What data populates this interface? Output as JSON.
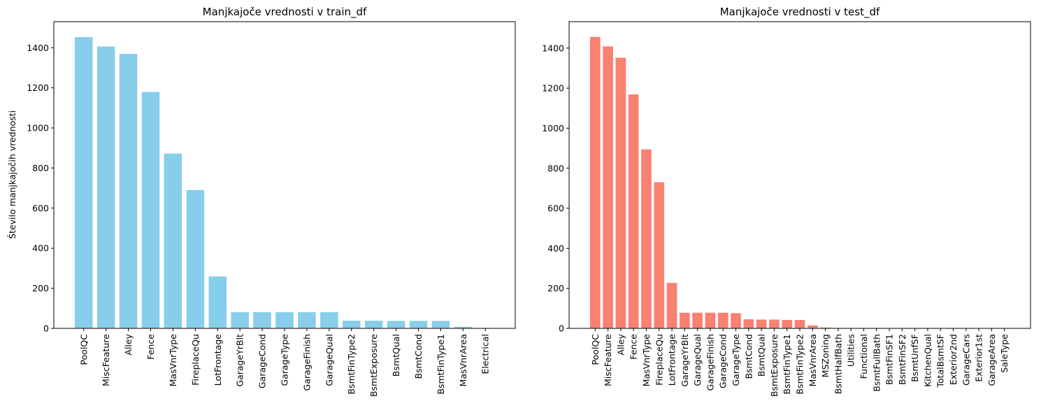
{
  "chart_data": [
    {
      "type": "bar",
      "title": "Manjkajoče vrednosti v train_df",
      "xlabel": "",
      "ylabel": "Število manjkajočih vrednosti",
      "ylim": [
        0,
        1530
      ],
      "yticks": [
        0,
        200,
        400,
        600,
        800,
        1000,
        1200,
        1400
      ],
      "bar_color": "#87ceeb",
      "grid": false,
      "categories": [
        "PoolQC",
        "MiscFeature",
        "Alley",
        "Fence",
        "MasVnrType",
        "FireplaceQu",
        "LotFrontage",
        "GarageYrBlt",
        "GarageCond",
        "GarageType",
        "GarageFinish",
        "GarageQual",
        "BsmtFinType2",
        "BsmtExposure",
        "BsmtQual",
        "BsmtCond",
        "BsmtFinType1",
        "MasVnrArea",
        "Electrical"
      ],
      "values": [
        1453,
        1406,
        1369,
        1179,
        872,
        690,
        259,
        81,
        81,
        81,
        81,
        81,
        38,
        38,
        37,
        37,
        37,
        8,
        1
      ]
    },
    {
      "type": "bar",
      "title": "Manjkajoče vrednosti v test_df",
      "xlabel": "",
      "ylabel": "",
      "ylim": [
        0,
        1532
      ],
      "yticks": [
        0,
        200,
        400,
        600,
        800,
        1000,
        1200,
        1400
      ],
      "bar_color": "#fa8072",
      "grid": false,
      "categories": [
        "PoolQC",
        "MiscFeature",
        "Alley",
        "Fence",
        "MasVnrType",
        "FireplaceQu",
        "LotFrontage",
        "GarageYrBlt",
        "GarageQual",
        "GarageFinish",
        "GarageCond",
        "GarageType",
        "BsmtCond",
        "BsmtQual",
        "BsmtExposure",
        "BsmtFinType1",
        "BsmtFinType2",
        "MasVnrArea",
        "MSZoning",
        "BsmtHalfBath",
        "Utilities",
        "Functional",
        "BsmtFullBath",
        "BsmtFinSF1",
        "BsmtFinSF2",
        "BsmtUnfSF",
        "KitchenQual",
        "TotalBsmtSF",
        "Exterior2nd",
        "GarageCars",
        "Exterior1st",
        "GarageArea",
        "SaleType"
      ],
      "values": [
        1456,
        1408,
        1352,
        1169,
        894,
        730,
        227,
        78,
        78,
        78,
        78,
        76,
        45,
        44,
        44,
        42,
        42,
        15,
        4,
        2,
        2,
        2,
        2,
        1,
        1,
        1,
        1,
        1,
        1,
        1,
        1,
        1,
        1
      ]
    }
  ]
}
